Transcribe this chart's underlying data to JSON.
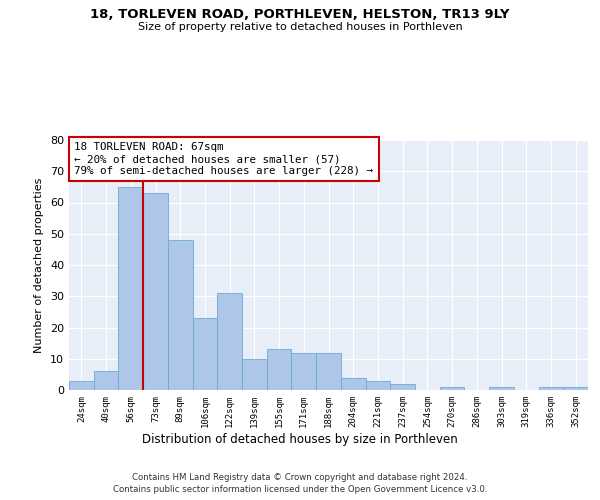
{
  "title": "18, TORLEVEN ROAD, PORTHLEVEN, HELSTON, TR13 9LY",
  "subtitle": "Size of property relative to detached houses in Porthleven",
  "xlabel": "Distribution of detached houses by size in Porthleven",
  "ylabel": "Number of detached properties",
  "bar_color": "#aec6e8",
  "bar_edge_color": "#6aaad4",
  "background_color": "#e8eef8",
  "categories": [
    "24sqm",
    "40sqm",
    "56sqm",
    "73sqm",
    "89sqm",
    "106sqm",
    "122sqm",
    "139sqm",
    "155sqm",
    "171sqm",
    "188sqm",
    "204sqm",
    "221sqm",
    "237sqm",
    "254sqm",
    "270sqm",
    "286sqm",
    "303sqm",
    "319sqm",
    "336sqm",
    "352sqm"
  ],
  "values": [
    3,
    6,
    65,
    63,
    48,
    23,
    31,
    10,
    13,
    12,
    12,
    4,
    3,
    2,
    0,
    1,
    0,
    1,
    0,
    1,
    1
  ],
  "ylim": [
    0,
    80
  ],
  "yticks": [
    0,
    10,
    20,
    30,
    40,
    50,
    60,
    70,
    80
  ],
  "red_line_x": 2.5,
  "red_line_color": "#cc0000",
  "annotation_line1": "18 TORLEVEN ROAD: 67sqm",
  "annotation_line2": "← 20% of detached houses are smaller (57)",
  "annotation_line3": "79% of semi-detached houses are larger (228) →",
  "annotation_box_color": "#ffffff",
  "annotation_box_edge": "#cc0000",
  "footer1": "Contains HM Land Registry data © Crown copyright and database right 2024.",
  "footer2": "Contains public sector information licensed under the Open Government Licence v3.0."
}
